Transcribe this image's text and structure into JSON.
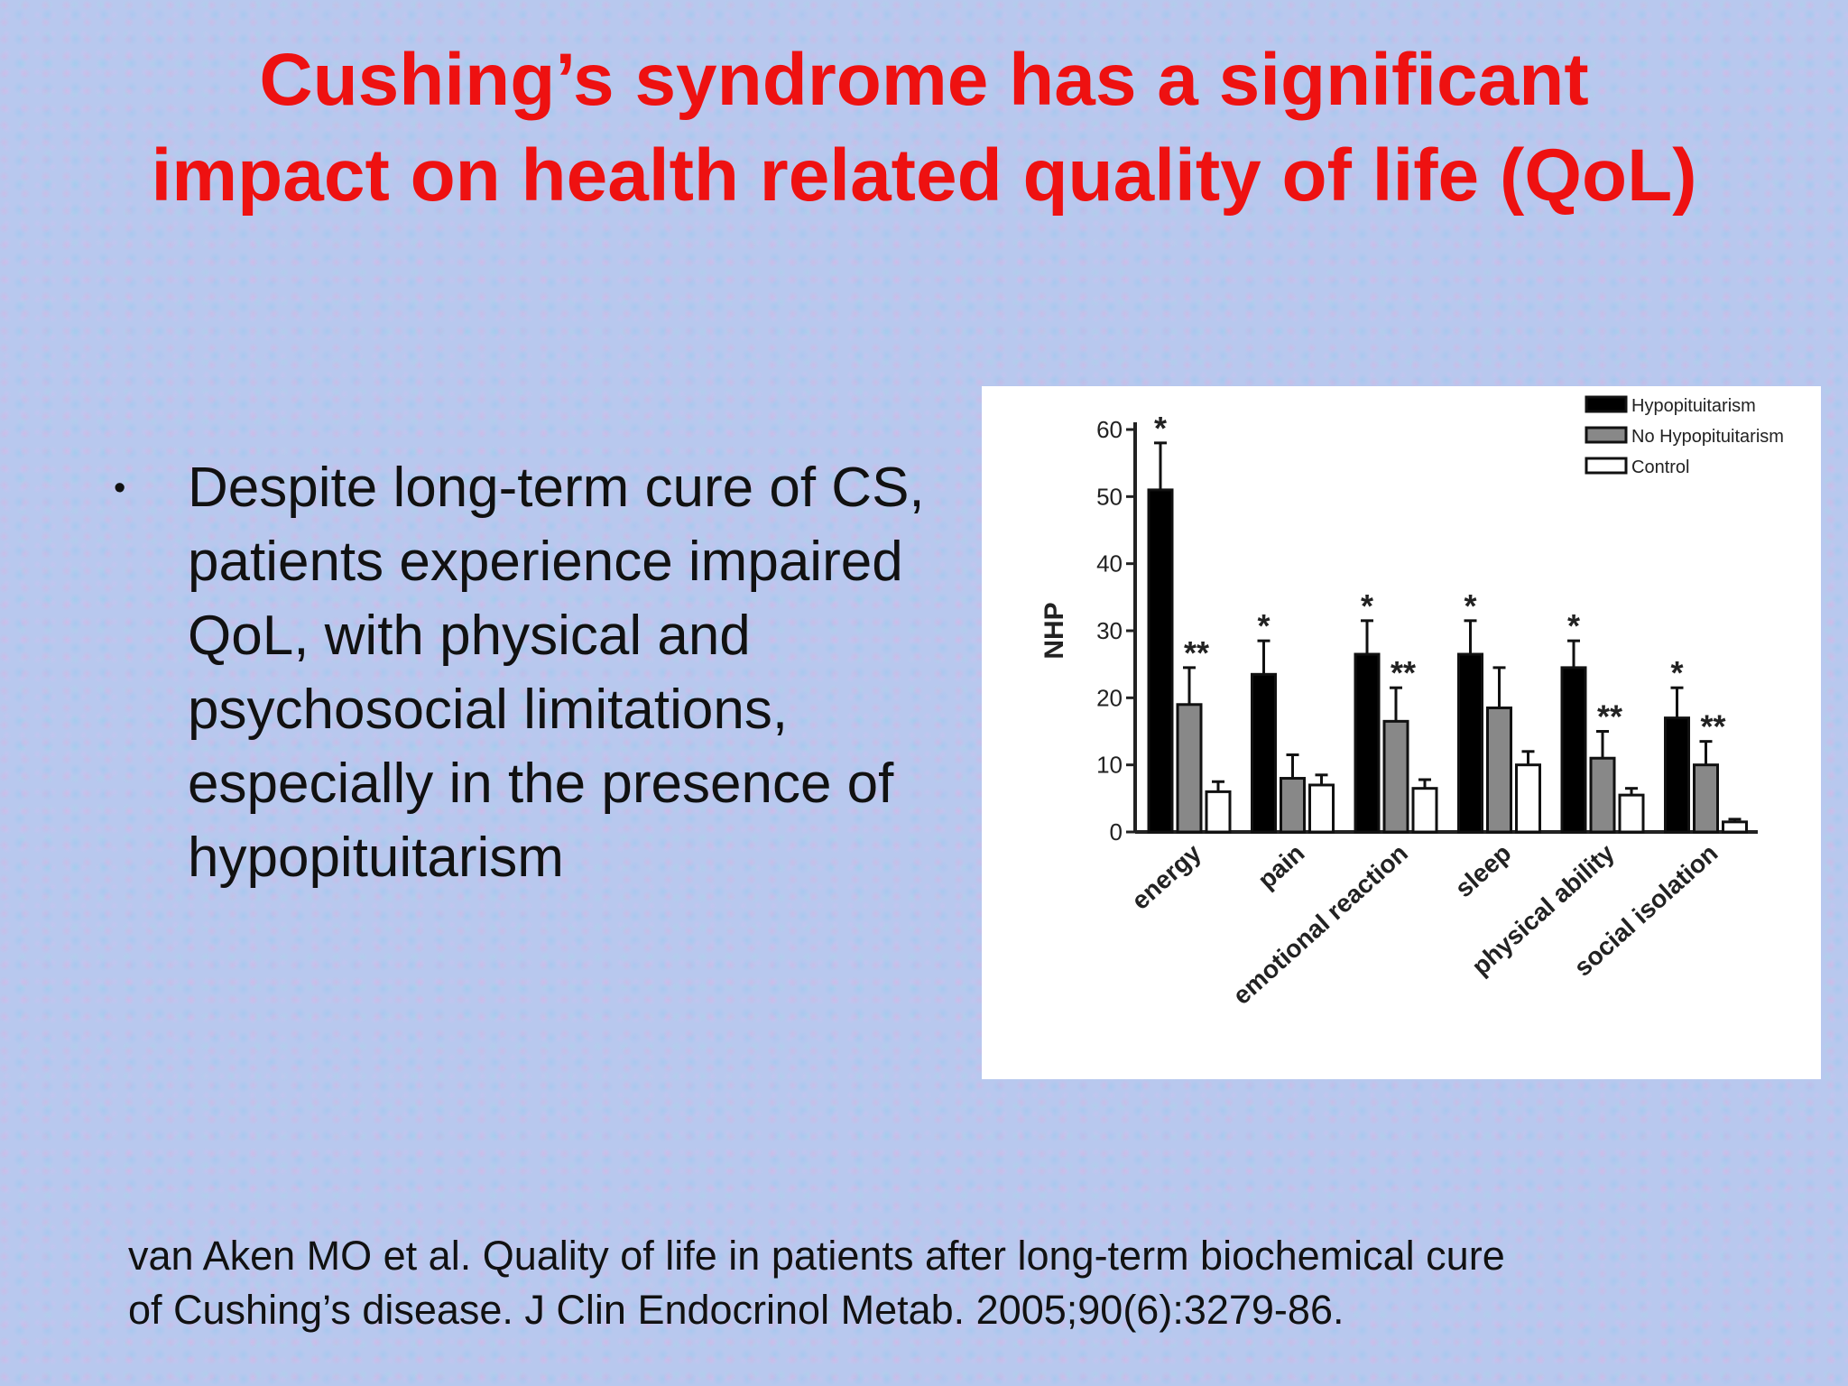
{
  "slide": {
    "title_lines": [
      "Cushing’s syndrome has a significant",
      "impact on health related quality of life (QoL)"
    ],
    "bullet_symbol": "•",
    "bullet_text": "Despite long-term cure of CS, patients experience impaired QoL, with physical and psychosocial limitations, especially in the presence of hypopituitarism",
    "citation_lines": [
      "van Aken MO et al. Quality of life in patients after long-term biochemical cure",
      "of Cushing’s disease. J Clin Endocrinol Metab. 2005;90(6):3279-86."
    ],
    "colors": {
      "title": "#ee1111",
      "text": "#111111",
      "background": "#b8c8ee"
    }
  },
  "chart_data": {
    "type": "bar",
    "title": "",
    "xlabel": "",
    "ylabel": "NHP",
    "ylim": [
      0,
      60
    ],
    "yticks": [
      0,
      10,
      20,
      30,
      40,
      50,
      60
    ],
    "grid": false,
    "legend_position": "top-right",
    "categories": [
      "energy",
      "pain",
      "emotional reaction",
      "sleep",
      "physical ability",
      "social isolation"
    ],
    "series": [
      {
        "name": "Hypopituitarism",
        "color": "#000000",
        "values": [
          51,
          23.5,
          26.5,
          26.5,
          24.5,
          17
        ],
        "errors": [
          7,
          5,
          5,
          5,
          4,
          4.5
        ],
        "annotations": [
          "*",
          "*",
          "*",
          "*",
          "*",
          "*"
        ]
      },
      {
        "name": "No Hypopituitarism",
        "color": "#888888",
        "values": [
          19,
          8,
          16.5,
          18.5,
          11,
          10
        ],
        "errors": [
          5.5,
          3.5,
          5,
          6,
          4,
          3.5
        ],
        "annotations": [
          "**",
          "",
          "**",
          "",
          "**",
          "**"
        ]
      },
      {
        "name": "Control",
        "color": "#ffffff",
        "values": [
          6,
          7,
          6.5,
          10,
          5.5,
          1.5
        ],
        "errors": [
          1.5,
          1.5,
          1.3,
          2,
          1,
          0.4
        ],
        "annotations": [
          "",
          "",
          "",
          "",
          "",
          ""
        ]
      }
    ]
  }
}
